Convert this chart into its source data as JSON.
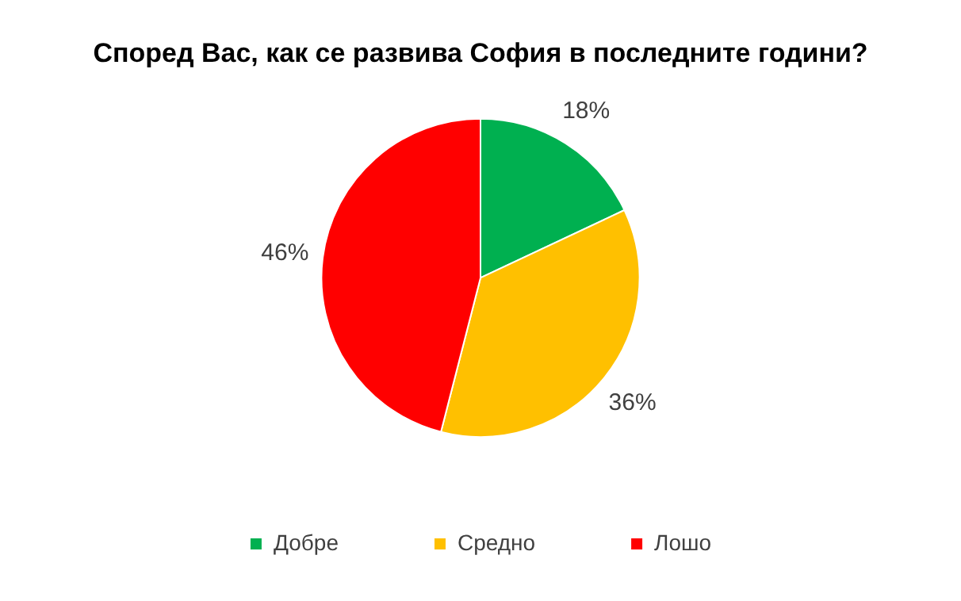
{
  "chart_data": {
    "type": "pie",
    "title": "Според Вас, как се развива София в последните години?",
    "categories": [
      "Добре",
      "Средно",
      "Лошо"
    ],
    "values": [
      18,
      36,
      46
    ],
    "colors": [
      "#00b050",
      "#ffc000",
      "#ff0000"
    ],
    "value_labels": [
      "18%",
      "36%",
      "46%"
    ],
    "legend": "bottom"
  }
}
